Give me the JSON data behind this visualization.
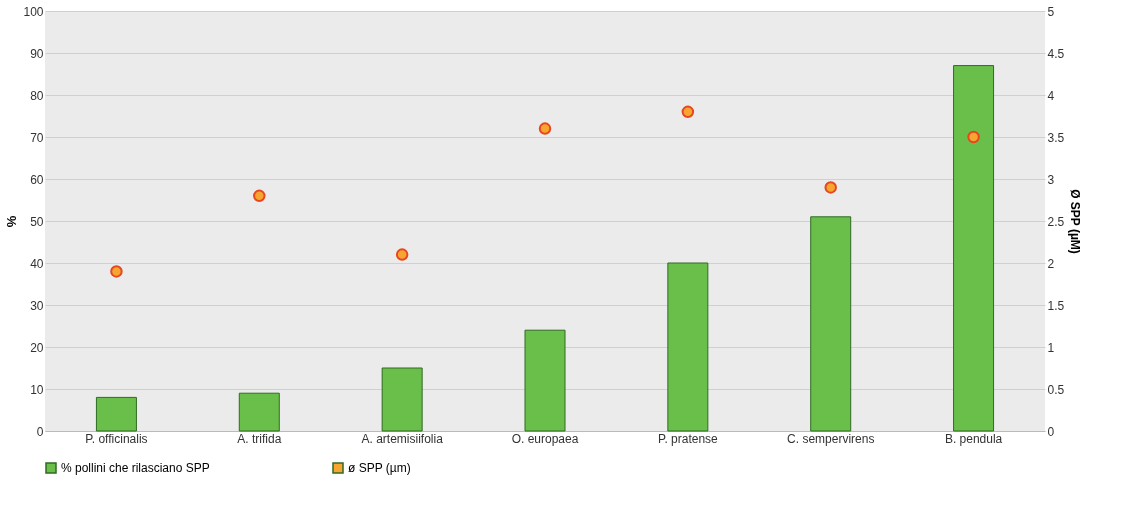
{
  "chart_data": {
    "type": "bar",
    "categories": [
      "P. officinalis",
      "A. trifida",
      "A. artemisiifolia",
      "O. europaea",
      "P. pratense",
      "C. sempervirens",
      "B. pendula"
    ],
    "ylabel": "%",
    "y2label": "Ø SPP (µM)",
    "ylim": [
      0,
      100
    ],
    "yticks": [
      0,
      10,
      20,
      30,
      40,
      50,
      60,
      70,
      80,
      90,
      100
    ],
    "y2lim": [
      0,
      5
    ],
    "y2ticks": [
      0,
      0.5,
      1,
      1.5,
      2,
      2.5,
      3,
      3.5,
      4,
      4.5,
      5
    ],
    "grid": "y",
    "legend": "bottom",
    "series": [
      {
        "name": "% pollini che rilasciano SPP",
        "color": "#6abf4b",
        "values": [
          8,
          9,
          15,
          24,
          40,
          51,
          87
        ]
      },
      {
        "name": "ø SPP (µm)",
        "type": "scatter",
        "axis": "y2",
        "marker": "circle",
        "color": "#f7a531",
        "values": [
          1.9,
          2.8,
          2.1,
          3.6,
          3.8,
          2.9,
          3.5
        ]
      }
    ]
  }
}
